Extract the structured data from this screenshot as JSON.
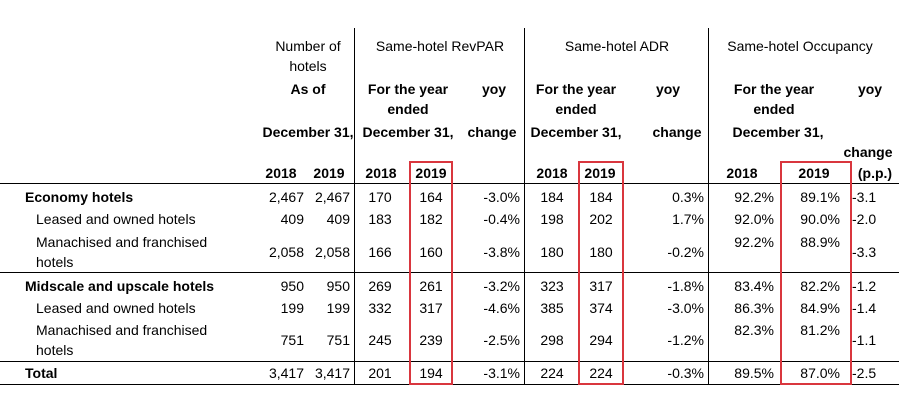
{
  "header": {
    "number_of_hotels": "Number of hotels",
    "revpar": "Same-hotel RevPAR",
    "adr": "Same-hotel ADR",
    "occupancy": "Same-hotel Occupancy",
    "as_of": "As of",
    "december_31": "December 31,",
    "for_year_ended": "For the year ended",
    "yoy": "yoy",
    "change": "change",
    "change_pp": "(p.p.)",
    "year_2018": "2018",
    "year_2019": "2019"
  },
  "rows": [
    {
      "label": "Economy hotels",
      "bold": true,
      "hotels_2018": "2,467",
      "hotels_2019": "2,467",
      "revpar_2018": "170",
      "revpar_2019": "164",
      "revpar_yoy": "-3.0%",
      "adr_2018": "184",
      "adr_2019": "184",
      "adr_yoy": "0.3%",
      "occ_2018": "92.2%",
      "occ_2019": "89.1%",
      "occ_change": "-3.1"
    },
    {
      "label": "Leased and owned hotels",
      "bold": false,
      "hotels_2018": "409",
      "hotels_2019": "409",
      "revpar_2018": "183",
      "revpar_2019": "182",
      "revpar_yoy": "-0.4%",
      "adr_2018": "198",
      "adr_2019": "202",
      "adr_yoy": "1.7%",
      "occ_2018": "92.0%",
      "occ_2019": "90.0%",
      "occ_change": "-2.0"
    },
    {
      "label": "Manachised and franchised hotels",
      "bold": false,
      "hotels_2018": "2,058",
      "hotels_2019": "2,058",
      "revpar_2018": "166",
      "revpar_2019": "160",
      "revpar_yoy": "-3.8%",
      "adr_2018": "180",
      "adr_2019": "180",
      "adr_yoy": "-0.2%",
      "occ_2018": "92.2%",
      "occ_2019": "88.9%",
      "occ_change": "-3.3"
    },
    {
      "label": "Midscale and upscale hotels",
      "bold": true,
      "hotels_2018": "950",
      "hotels_2019": "950",
      "revpar_2018": "269",
      "revpar_2019": "261",
      "revpar_yoy": "-3.2%",
      "adr_2018": "323",
      "adr_2019": "317",
      "adr_yoy": "-1.8%",
      "occ_2018": "83.4%",
      "occ_2019": "82.2%",
      "occ_change": "-1.2"
    },
    {
      "label": "Leased and owned hotels",
      "bold": false,
      "hotels_2018": "199",
      "hotels_2019": "199",
      "revpar_2018": "332",
      "revpar_2019": "317",
      "revpar_yoy": "-4.6%",
      "adr_2018": "385",
      "adr_2019": "374",
      "adr_yoy": "-3.0%",
      "occ_2018": "86.3%",
      "occ_2019": "84.9%",
      "occ_change": "-1.4"
    },
    {
      "label": "Manachised and franchised hotels",
      "bold": false,
      "hotels_2018": "751",
      "hotels_2019": "751",
      "revpar_2018": "245",
      "revpar_2019": "239",
      "revpar_yoy": "-2.5%",
      "adr_2018": "298",
      "adr_2019": "294",
      "adr_yoy": "-1.2%",
      "occ_2018": "82.3%",
      "occ_2019": "81.2%",
      "occ_change": "-1.1"
    },
    {
      "label": "Total",
      "bold": true,
      "hotels_2018": "3,417",
      "hotels_2019": "3,417",
      "revpar_2018": "201",
      "revpar_2019": "194",
      "revpar_yoy": "-3.1%",
      "adr_2018": "224",
      "adr_2019": "224",
      "adr_yoy": "-0.3%",
      "occ_2018": "89.5%",
      "occ_2019": "87.0%",
      "occ_change": "-2.5"
    }
  ],
  "colors": {
    "highlight": "#d9363e"
  }
}
